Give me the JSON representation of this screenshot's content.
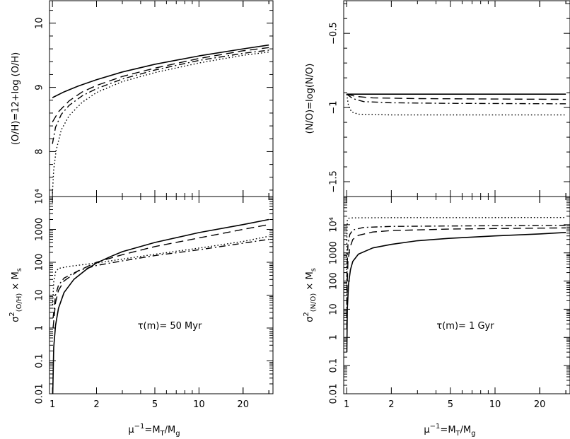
{
  "chart_data": [
    {
      "id": "top-left",
      "type": "line",
      "ylabel": "(O/H)=12+log (O/H)",
      "xscale": "log",
      "xlim": [
        0.955,
        32
      ],
      "ylim": [
        7.3,
        10.35
      ],
      "x_ticks": [
        1,
        2,
        5,
        10,
        20
      ],
      "y_ticks": [
        8,
        9,
        10
      ],
      "y_tick_labels": [
        "8",
        "9",
        "10"
      ],
      "series": [
        {
          "style": "solid",
          "points": [
            [
              1,
              8.84
            ],
            [
              1.2,
              8.93
            ],
            [
              1.5,
              9.02
            ],
            [
              2,
              9.12
            ],
            [
              3,
              9.24
            ],
            [
              5,
              9.36
            ],
            [
              10,
              9.49
            ],
            [
              20,
              9.6
            ],
            [
              30,
              9.66
            ]
          ]
        },
        {
          "style": "dashed",
          "points": [
            [
              1,
              8.46
            ],
            [
              1.1,
              8.62
            ],
            [
              1.3,
              8.79
            ],
            [
              1.6,
              8.93
            ],
            [
              2,
              9.03
            ],
            [
              3,
              9.17
            ],
            [
              5,
              9.3
            ],
            [
              10,
              9.45
            ],
            [
              20,
              9.57
            ],
            [
              30,
              9.62
            ]
          ]
        },
        {
          "style": "dashdot",
          "points": [
            [
              1,
              8.12
            ],
            [
              1.05,
              8.38
            ],
            [
              1.15,
              8.58
            ],
            [
              1.3,
              8.72
            ],
            [
              1.6,
              8.87
            ],
            [
              2,
              8.98
            ],
            [
              3,
              9.13
            ],
            [
              5,
              9.27
            ],
            [
              10,
              9.42
            ],
            [
              20,
              9.53
            ],
            [
              30,
              9.58
            ]
          ]
        },
        {
          "style": "dotted",
          "points": [
            [
              1,
              7.35
            ],
            [
              1.02,
              7.72
            ],
            [
              1.06,
              8.02
            ],
            [
              1.15,
              8.34
            ],
            [
              1.3,
              8.56
            ],
            [
              1.6,
              8.77
            ],
            [
              2,
              8.92
            ],
            [
              3,
              9.09
            ],
            [
              5,
              9.23
            ],
            [
              10,
              9.38
            ],
            [
              20,
              9.5
            ],
            [
              30,
              9.55
            ]
          ]
        }
      ]
    },
    {
      "id": "top-right",
      "type": "line",
      "ylabel": "(N/O)=log(N/O)",
      "xscale": "log",
      "xlim": [
        0.955,
        32
      ],
      "ylim": [
        -1.6,
        -0.28
      ],
      "x_ticks": [
        1,
        2,
        5,
        10,
        20
      ],
      "y_ticks": [
        -1.5,
        -1,
        -0.5
      ],
      "y_tick_labels": [
        "−1.5",
        "−1",
        "−0.5"
      ],
      "series": [
        {
          "style": "solid",
          "points": [
            [
              1,
              -0.91
            ],
            [
              30,
              -0.91
            ]
          ]
        },
        {
          "style": "dashed",
          "points": [
            [
              1,
              -0.91
            ],
            [
              1.15,
              -0.925
            ],
            [
              1.5,
              -0.935
            ],
            [
              3,
              -0.94
            ],
            [
              30,
              -0.945
            ]
          ]
        },
        {
          "style": "dashdot",
          "points": [
            [
              1,
              -0.91
            ],
            [
              1.1,
              -0.94
            ],
            [
              1.3,
              -0.96
            ],
            [
              2,
              -0.968
            ],
            [
              5,
              -0.972
            ],
            [
              30,
              -0.975
            ]
          ]
        },
        {
          "style": "dotted",
          "points": [
            [
              1,
              -0.91
            ],
            [
              1.03,
              -0.99
            ],
            [
              1.08,
              -1.03
            ],
            [
              1.2,
              -1.045
            ],
            [
              2,
              -1.05
            ],
            [
              30,
              -1.05
            ]
          ]
        }
      ]
    },
    {
      "id": "bottom-left",
      "type": "line",
      "ylabel_base": "σ",
      "ylabel_sup": "2",
      "ylabel_sub": "(O/H)",
      "ylabel_mid": " × M",
      "ylabel_sub2": "s",
      "annotation": "τ(m)= 50 Myr",
      "xlabel_base": "μ",
      "xlabel_sup": "−1",
      "xlabel_mid": "=M",
      "xlabel_sub": "T",
      "xlabel_mid2": "/M",
      "xlabel_sub2": "g",
      "xscale": "log",
      "yscale": "log",
      "xlim": [
        0.955,
        32
      ],
      "ylim": [
        0.01,
        10000
      ],
      "x_ticks": [
        1,
        2,
        5,
        10,
        20
      ],
      "x_tick_labels": [
        "1",
        "2",
        "5",
        "10",
        "20"
      ],
      "y_ticks": [
        0.01,
        0.1,
        1,
        10,
        100,
        1000,
        10000
      ],
      "y_tick_labels": [
        "0.01",
        "0.1",
        "1",
        "10",
        "100",
        "1000",
        "10⁴"
      ],
      "series": [
        {
          "style": "solid",
          "points": [
            [
              1.005,
              0.01
            ],
            [
              1.02,
              0.25
            ],
            [
              1.05,
              1.2
            ],
            [
              1.1,
              4
            ],
            [
              1.2,
              12
            ],
            [
              1.4,
              30
            ],
            [
              1.7,
              60
            ],
            [
              2,
              95
            ],
            [
              2.5,
              150
            ],
            [
              3,
              210
            ],
            [
              5,
              400
            ],
            [
              10,
              800
            ],
            [
              20,
              1400
            ],
            [
              30,
              2000
            ]
          ]
        },
        {
          "style": "dashed",
          "points": [
            [
              1.01,
              1
            ],
            [
              1.05,
              6
            ],
            [
              1.1,
              14
            ],
            [
              1.2,
              27
            ],
            [
              1.5,
              55
            ],
            [
              2,
              100
            ],
            [
              3,
              170
            ],
            [
              5,
              300
            ],
            [
              10,
              550
            ],
            [
              20,
              1000
            ],
            [
              30,
              1400
            ]
          ]
        },
        {
          "style": "dashdot",
          "points": [
            [
              1.01,
              2
            ],
            [
              1.05,
              10
            ],
            [
              1.1,
              20
            ],
            [
              1.2,
              33
            ],
            [
              1.5,
              55
            ],
            [
              2,
              80
            ],
            [
              3,
              110
            ],
            [
              5,
              160
            ],
            [
              10,
              240
            ],
            [
              20,
              380
            ],
            [
              30,
              500
            ]
          ]
        },
        {
          "style": "dotted",
          "points": [
            [
              1.003,
              5
            ],
            [
              1.02,
              25
            ],
            [
              1.05,
              50
            ],
            [
              1.1,
              65
            ],
            [
              1.3,
              75
            ],
            [
              2,
              95
            ],
            [
              3,
              125
            ],
            [
              5,
              175
            ],
            [
              10,
              270
            ],
            [
              20,
              430
            ],
            [
              30,
              620
            ]
          ]
        }
      ]
    },
    {
      "id": "bottom-right",
      "type": "line",
      "ylabel_base": "σ",
      "ylabel_sup": "2",
      "ylabel_sub": "(N/O)",
      "ylabel_mid": " × M",
      "ylabel_sub2": "s",
      "annotation": "τ(m)= 1 Gyr",
      "xlabel_base": "μ",
      "xlabel_sup": "−1",
      "xlabel_mid": "=M",
      "xlabel_sub": "T",
      "xlabel_mid2": "/M",
      "xlabel_sub2": "g",
      "xscale": "log",
      "yscale": "log",
      "xlim": [
        0.955,
        32
      ],
      "ylim": [
        0.01,
        100000
      ],
      "x_ticks": [
        1,
        2,
        5,
        10,
        20
      ],
      "x_tick_labels": [
        "1",
        "2",
        "5",
        "10",
        "20"
      ],
      "y_ticks": [
        0.01,
        0.1,
        1,
        10,
        100,
        1000,
        10000
      ],
      "y_tick_labels": [
        "0.01",
        "0.1",
        "1",
        "10",
        "100",
        "1000",
        "10⁴"
      ],
      "series": [
        {
          "style": "solid",
          "points": [
            [
              1.003,
              0.3
            ],
            [
              1.01,
              10
            ],
            [
              1.03,
              80
            ],
            [
              1.06,
              250
            ],
            [
              1.1,
              500
            ],
            [
              1.2,
              900
            ],
            [
              1.5,
              1500
            ],
            [
              2,
              2000
            ],
            [
              3,
              2700
            ],
            [
              5,
              3300
            ],
            [
              10,
              4000
            ],
            [
              20,
              4700
            ],
            [
              30,
              5300
            ]
          ]
        },
        {
          "style": "dashed",
          "points": [
            [
              1.001,
              2
            ],
            [
              1.005,
              40
            ],
            [
              1.02,
              500
            ],
            [
              1.05,
              1500
            ],
            [
              1.1,
              3000
            ],
            [
              1.2,
              4200
            ],
            [
              1.5,
              5500
            ],
            [
              2,
              6200
            ],
            [
              5,
              7000
            ],
            [
              10,
              7300
            ],
            [
              30,
              7700
            ]
          ]
        },
        {
          "style": "dashdot",
          "points": [
            [
              1.001,
              5
            ],
            [
              1.005,
              200
            ],
            [
              1.02,
              2000
            ],
            [
              1.05,
              4500
            ],
            [
              1.1,
              6500
            ],
            [
              1.3,
              8000
            ],
            [
              2,
              8700
            ],
            [
              5,
              9000
            ],
            [
              10,
              9200
            ],
            [
              30,
              9500
            ]
          ]
        },
        {
          "style": "dotted",
          "points": [
            [
              1.0005,
              50
            ],
            [
              1.003,
              3000
            ],
            [
              1.01,
              14000
            ],
            [
              1.03,
              17000
            ],
            [
              1.1,
              17500
            ],
            [
              2,
              17800
            ],
            [
              30,
              18000
            ]
          ]
        }
      ]
    }
  ]
}
